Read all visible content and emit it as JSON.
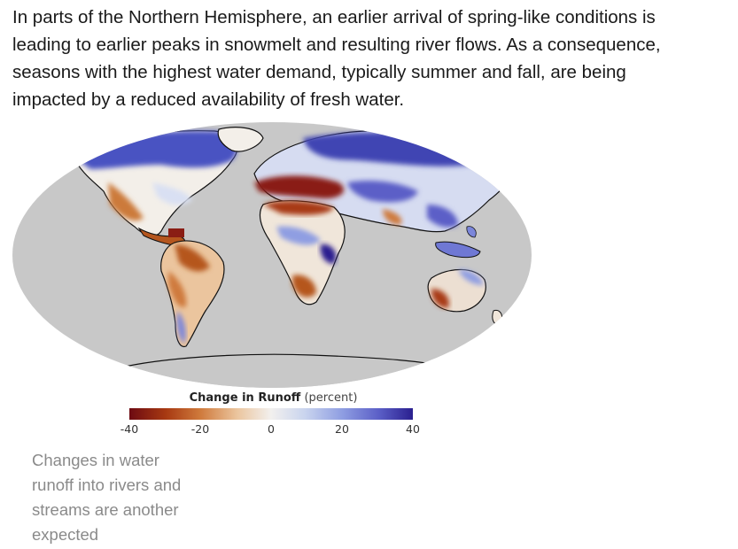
{
  "intro": {
    "lines": [
      "In parts of the Northern Hemisphere, an earlier arrival of spring-like conditions is",
      "leading to earlier peaks in snowmelt and resulting river flows. As a consequence,",
      "seasons with the highest water demand, typically summer and fall, are being",
      "impacted by a reduced availability of fresh water."
    ]
  },
  "map": {
    "ocean_color": "#c8c8c8",
    "land_outline_color": "#111111",
    "legend": {
      "title_bold": "Change in Runoff",
      "title_unit": "(percent)",
      "ticks": [
        "-40",
        "-20",
        "0",
        "20",
        "40"
      ],
      "scale": {
        "min": -40,
        "max": 40,
        "colors": [
          "#6d0a12",
          "#a83a12",
          "#cf7a3c",
          "#ebc59e",
          "#f2f0ee",
          "#c9d4ee",
          "#8f9ee2",
          "#5b5fc7",
          "#2a1f8f"
        ]
      }
    }
  },
  "caption": {
    "lines": [
      "Changes in water",
      "runoff into rivers and",
      "streams are another",
      "expected"
    ]
  }
}
